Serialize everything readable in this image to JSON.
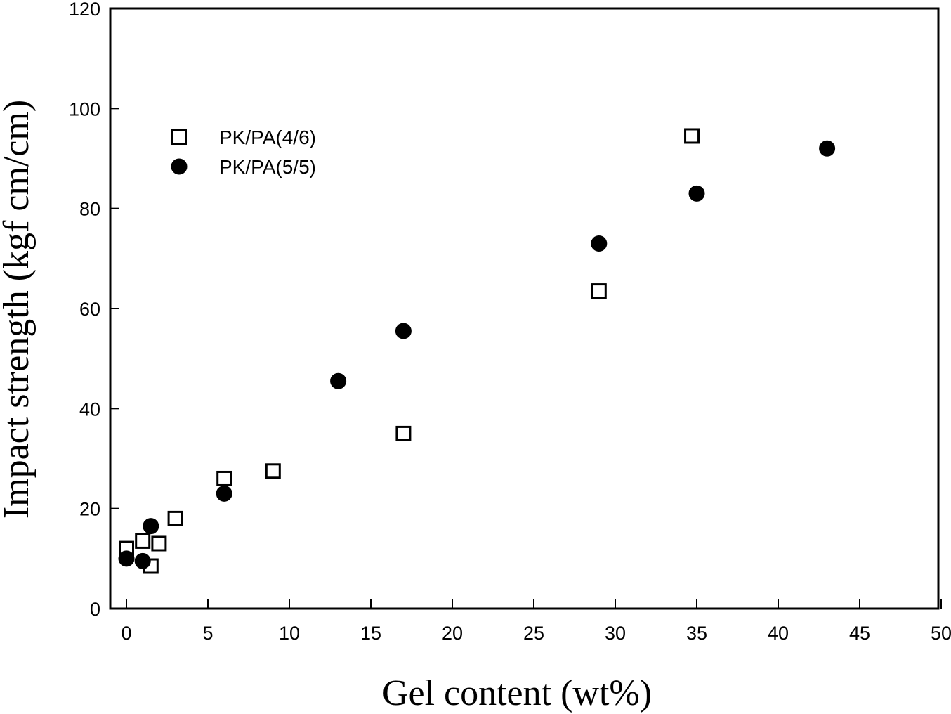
{
  "chart_data": {
    "type": "scatter",
    "xlabel": "Gel content (wt%)",
    "ylabel": "Impact strength (kgf cm/cm)",
    "xlim": [
      -1,
      50
    ],
    "ylim": [
      0,
      120
    ],
    "xticks": [
      0,
      5,
      10,
      15,
      20,
      25,
      30,
      35,
      40,
      45,
      50
    ],
    "yticks": [
      0,
      20,
      40,
      60,
      80,
      100,
      120
    ],
    "grid": false,
    "legend_position": "top-left",
    "series": [
      {
        "name": "PK/PA(4/6)",
        "marker": "open-square",
        "color": "#000000",
        "points": [
          {
            "x": 0,
            "y": 12
          },
          {
            "x": 1,
            "y": 13.5
          },
          {
            "x": 1.5,
            "y": 8.5
          },
          {
            "x": 2,
            "y": 13
          },
          {
            "x": 3,
            "y": 18
          },
          {
            "x": 6,
            "y": 26
          },
          {
            "x": 9,
            "y": 27.5
          },
          {
            "x": 17,
            "y": 35
          },
          {
            "x": 29,
            "y": 63.5
          },
          {
            "x": 34.7,
            "y": 94.5
          }
        ]
      },
      {
        "name": "PK/PA(5/5)",
        "marker": "filled-circle",
        "color": "#000000",
        "points": [
          {
            "x": 0,
            "y": 10
          },
          {
            "x": 1,
            "y": 9.5
          },
          {
            "x": 1.5,
            "y": 16.5
          },
          {
            "x": 6,
            "y": 23
          },
          {
            "x": 13,
            "y": 45.5
          },
          {
            "x": 17,
            "y": 55.5
          },
          {
            "x": 29,
            "y": 73
          },
          {
            "x": 35,
            "y": 83
          },
          {
            "x": 43,
            "y": 92
          }
        ]
      }
    ]
  }
}
